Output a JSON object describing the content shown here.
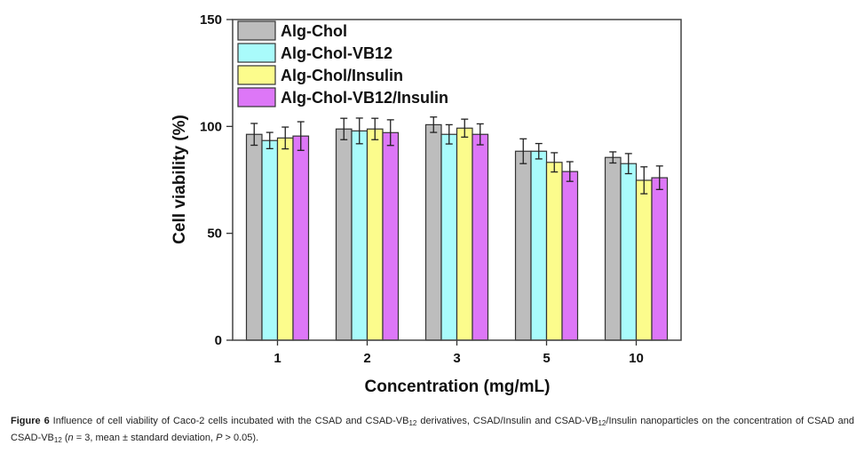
{
  "chart_data": {
    "type": "bar",
    "title": "",
    "xlabel": "Concentration (mg/mL)",
    "ylabel": "Cell viability (%)",
    "ylim": [
      0,
      150
    ],
    "yticks": [
      0,
      50,
      100,
      150
    ],
    "grid": false,
    "legend_position": "top-left",
    "categories": [
      "1",
      "2",
      "3",
      "5",
      "10"
    ],
    "series": [
      {
        "name": "Alg-Chol",
        "color": "#bdbdbd",
        "values": [
          96.3,
          98.8,
          100.8,
          88.4,
          85.5
        ],
        "errors": [
          5.1,
          5.0,
          3.6,
          5.8,
          2.6
        ]
      },
      {
        "name": "Alg-Chol-VB12",
        "color": "#a9fbfb",
        "values": [
          93.4,
          97.9,
          96.3,
          88.4,
          82.6
        ],
        "errors": [
          3.8,
          6.0,
          4.5,
          3.6,
          4.7
        ]
      },
      {
        "name": "Alg-Chol/Insulin",
        "color": "#fcfc8c",
        "values": [
          94.6,
          98.8,
          99.2,
          83.2,
          74.8
        ],
        "errors": [
          5.1,
          5.0,
          4.2,
          4.5,
          6.3
        ]
      },
      {
        "name": "Alg-Chol-VB12/Insulin",
        "color": "#dd77f7",
        "values": [
          95.5,
          97.1,
          96.3,
          78.9,
          76.0
        ],
        "errors": [
          6.7,
          6.0,
          4.9,
          4.6,
          5.5
        ]
      }
    ]
  },
  "caption": {
    "label": "Figure 6",
    "part1": " Influence of cell viability of Caco-2 cells incubated with the CSAD and CSAD-VB",
    "sub1": "12",
    "part2": " derivatives, CSAD/Insulin and CSAD-VB",
    "sub2": "12",
    "part3": "/Insulin nanoparticles on the concentration of CSAD and CSAD-VB",
    "sub3": "12",
    "part4": " (",
    "n_italic": "n",
    "part5": " = 3, mean ± standard deviation, ",
    "p_italic": "P",
    "part6": " > 0.05)."
  }
}
